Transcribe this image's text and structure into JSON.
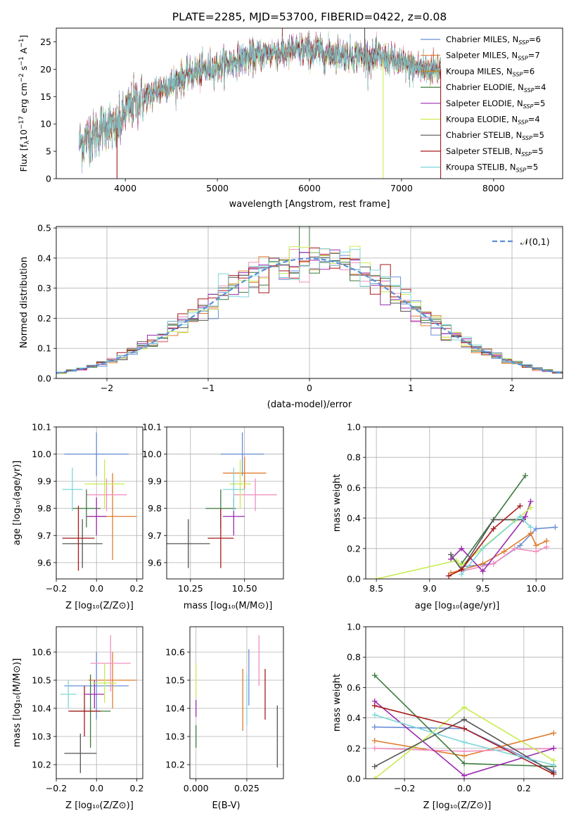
{
  "colors": {
    "chabrier_miles": "#6b8fd6",
    "salpeter_miles": "#e07b2c",
    "kroupa_miles": "#f28fc0",
    "chabrier_elodie": "#3d7a3d",
    "salpeter_elodie": "#9a2bb0",
    "kroupa_elodie": "#c8ec52",
    "chabrier_stelib": "#555555",
    "salpeter_stelib": "#a81a1a",
    "kroupa_stelib": "#7ed6d8",
    "normal": "#5b8fd6",
    "grid": "#b0b0b0"
  },
  "chart_data": [
    {
      "id": "spectrum",
      "type": "line",
      "title": "PLATE=2285, MJD=53700, FIBERID=0422, z=0.08",
      "xlabel": "wavelength [Angstrom, rest frame]",
      "ylabel": "Flux [f_λ10^-17 erg cm^-2 s^-1 A^-1]",
      "xlim": [
        3250,
        8750
      ],
      "ylim": [
        0,
        27.5
      ],
      "xticks": [
        4000,
        5000,
        6000,
        7000,
        8000
      ],
      "yticks": [
        0,
        5,
        10,
        15,
        20,
        25
      ],
      "grid": false,
      "legend_position": "top-right",
      "legend": [
        {
          "key": "chabrier_miles",
          "label": "Chabrier MILES, N",
          "sub": "SSP",
          "tail": "=6"
        },
        {
          "key": "salpeter_miles",
          "label": "Salpeter MILES, N",
          "sub": "SSP",
          "tail": "=7"
        },
        {
          "key": "kroupa_miles",
          "label": "Kroupa MILES, N",
          "sub": "SSP",
          "tail": "=6",
          "color_override": "#c88a20"
        },
        {
          "key": "chabrier_elodie",
          "label": "Chabrier ELODIE, N",
          "sub": "SSP",
          "tail": "=4"
        },
        {
          "key": "salpeter_elodie",
          "label": "Salpeter ELODIE, N",
          "sub": "SSP",
          "tail": "=5"
        },
        {
          "key": "kroupa_elodie",
          "label": "Kroupa ELODIE, N",
          "sub": "SSP",
          "tail": "=4"
        },
        {
          "key": "chabrier_stelib",
          "label": "Chabrier STELIB, N",
          "sub": "SSP",
          "tail": "=5"
        },
        {
          "key": "salpeter_stelib",
          "label": "Salpeter STELIB, N",
          "sub": "SSP",
          "tail": "=5"
        },
        {
          "key": "kroupa_stelib",
          "label": "Kroupa STELIB, N",
          "sub": "SSP",
          "tail": "=5"
        }
      ],
      "continuum": {
        "x": [
          3500,
          3700,
          3800,
          3900,
          4000,
          4100,
          4300,
          4500,
          4700,
          5000,
          5300,
          5600,
          5900,
          6200,
          6500,
          6800,
          7100,
          7300,
          7400
        ],
        "y": [
          6.5,
          8.5,
          10,
          9,
          12,
          14,
          15.5,
          17.5,
          19,
          20.5,
          22,
          23,
          23.5,
          23,
          22.5,
          22,
          20.5,
          20,
          20
        ]
      },
      "spikes": [
        {
          "x": 3910,
          "y": 0
        },
        {
          "x": 6800,
          "y": 0
        },
        {
          "x": 7425,
          "y": 0
        },
        {
          "x": 6600,
          "y": 27.5
        }
      ]
    },
    {
      "id": "residuals",
      "type": "histogram",
      "xlabel": "(data-model)/error",
      "ylabel": "Normed distribution",
      "xlim": [
        -2.5,
        2.5
      ],
      "ylim": [
        0,
        0.505
      ],
      "xticks": [
        -2,
        -1,
        0,
        1,
        2
      ],
      "yticks": [
        0.0,
        0.1,
        0.2,
        0.3,
        0.4,
        0.5
      ],
      "grid": true,
      "legend_position": "top-right",
      "normal_label": "𝒩(0,1)",
      "bin_width": 0.1
    },
    {
      "id": "age_vs_Z",
      "type": "errorbar",
      "xlabel": "Z [log₁₀(Z/Z⊙)]",
      "ylabel": "age  [log₁₀(age/yr)]",
      "xlim": [
        -0.2,
        0.23
      ],
      "ylim": [
        9.54,
        10.1
      ],
      "xticks": [
        -0.2,
        0.0,
        0.2
      ],
      "yticks": [
        9.6,
        9.7,
        9.8,
        9.9,
        10.0,
        10.1
      ],
      "grid": true,
      "points": [
        {
          "key": "chabrier_miles",
          "x": 0.0,
          "xerr": 0.16,
          "y": 10.0,
          "yerr": 0.08
        },
        {
          "key": "salpeter_miles",
          "x": 0.08,
          "xerr": 0.12,
          "y": 9.77,
          "yerr": 0.16
        },
        {
          "key": "kroupa_miles",
          "x": 0.05,
          "xerr": 0.1,
          "y": 9.85,
          "yerr": 0.06
        },
        {
          "key": "chabrier_elodie",
          "x": -0.05,
          "xerr": 0.07,
          "y": 9.8,
          "yerr": 0.07
        },
        {
          "key": "salpeter_elodie",
          "x": 0.0,
          "xerr": 0.05,
          "y": 9.77,
          "yerr": 0.07
        },
        {
          "key": "kroupa_elodie",
          "x": 0.04,
          "xerr": 0.1,
          "y": 9.89,
          "yerr": 0.09
        },
        {
          "key": "chabrier_stelib",
          "x": -0.07,
          "xerr": 0.1,
          "y": 9.67,
          "yerr": 0.09
        },
        {
          "key": "salpeter_stelib",
          "x": -0.09,
          "xerr": 0.08,
          "y": 9.69,
          "yerr": 0.12
        },
        {
          "key": "kroupa_stelib",
          "x": -0.12,
          "xerr": 0.05,
          "y": 9.87,
          "yerr": 0.08
        }
      ]
    },
    {
      "id": "age_vs_mass",
      "type": "errorbar",
      "xlabel": "mass [log₁₀(M/M⊙)]",
      "ylabel": "",
      "xlim": [
        10.14,
        10.68
      ],
      "ylim": [
        9.54,
        10.1
      ],
      "xticks": [
        10.25,
        10.5
      ],
      "xtick_labels": [
        "10.25",
        "10.50"
      ],
      "yticks": [
        9.6,
        9.7,
        9.8,
        9.9,
        10.0,
        10.1
      ],
      "grid": true,
      "points": [
        {
          "key": "chabrier_miles",
          "x": 10.49,
          "xerr": 0.1,
          "y": 10.0,
          "yerr": 0.08
        },
        {
          "key": "salpeter_miles",
          "x": 10.5,
          "xerr": 0.1,
          "y": 9.93,
          "yerr": 0.06
        },
        {
          "key": "kroupa_miles",
          "x": 10.55,
          "xerr": 0.1,
          "y": 9.85,
          "yerr": 0.06
        },
        {
          "key": "chabrier_elodie",
          "x": 10.39,
          "xerr": 0.07,
          "y": 9.8,
          "yerr": 0.07
        },
        {
          "key": "salpeter_elodie",
          "x": 10.45,
          "xerr": 0.05,
          "y": 9.77,
          "yerr": 0.07
        },
        {
          "key": "kroupa_elodie",
          "x": 10.48,
          "xerr": 0.05,
          "y": 9.89,
          "yerr": 0.09
        },
        {
          "key": "chabrier_stelib",
          "x": 10.24,
          "xerr": 0.1,
          "y": 9.67,
          "yerr": 0.09
        },
        {
          "key": "salpeter_stelib",
          "x": 10.39,
          "xerr": 0.06,
          "y": 9.69,
          "yerr": 0.11
        },
        {
          "key": "kroupa_stelib",
          "x": 10.45,
          "xerr": 0.05,
          "y": 9.87,
          "yerr": 0.08
        }
      ]
    },
    {
      "id": "massweight_vs_age",
      "type": "line",
      "xlabel": "age  [log₁₀(age/yr)]",
      "ylabel": "mass weight",
      "xlim": [
        8.4,
        10.25
      ],
      "ylim": [
        0,
        1.0
      ],
      "xticks": [
        8.5,
        9.0,
        9.5,
        10.0
      ],
      "yticks": [
        0.0,
        0.2,
        0.4,
        0.6,
        0.8,
        1.0
      ],
      "grid": true,
      "series": [
        {
          "key": "chabrier_miles",
          "x": [
            9.3,
            9.6,
            9.85,
            10.0,
            10.18
          ],
          "y": [
            0.08,
            0.1,
            0.22,
            0.33,
            0.34
          ]
        },
        {
          "key": "salpeter_miles",
          "x": [
            9.2,
            9.5,
            9.7,
            9.95,
            10.0,
            10.1
          ],
          "y": [
            0.04,
            0.1,
            0.18,
            0.3,
            0.22,
            0.25
          ]
        },
        {
          "key": "kroupa_miles",
          "x": [
            9.3,
            9.6,
            9.8,
            10.0,
            10.1
          ],
          "y": [
            0.05,
            0.1,
            0.2,
            0.18,
            0.21
          ]
        },
        {
          "key": "chabrier_elodie",
          "x": [
            9.3,
            9.9
          ],
          "y": [
            0.1,
            0.68
          ]
        },
        {
          "key": "salpeter_elodie",
          "x": [
            9.2,
            9.3,
            9.5,
            9.9,
            9.95
          ],
          "y": [
            0.13,
            0.2,
            0.05,
            0.41,
            0.51
          ]
        },
        {
          "key": "kroupa_elodie",
          "x": [
            8.5,
            9.25,
            9.3,
            9.8,
            9.95
          ],
          "y": [
            0.0,
            0.12,
            0.09,
            0.38,
            0.47
          ]
        },
        {
          "key": "chabrier_stelib",
          "x": [
            9.2,
            9.3,
            9.6,
            9.88
          ],
          "y": [
            0.16,
            0.06,
            0.39,
            0.39
          ]
        },
        {
          "key": "salpeter_stelib",
          "x": [
            9.18,
            9.3,
            9.6,
            9.85
          ],
          "y": [
            0.02,
            0.06,
            0.33,
            0.48
          ]
        },
        {
          "key": "kroupa_stelib",
          "x": [
            9.3,
            9.5,
            9.85,
            9.95
          ],
          "y": [
            0.03,
            0.2,
            0.41,
            0.34
          ]
        }
      ]
    },
    {
      "id": "mass_vs_Z",
      "type": "errorbar",
      "xlabel": "Z [log₁₀(Z/Z⊙)]",
      "ylabel": "mass [log₁₀(M/M⊙)]",
      "xlim": [
        -0.2,
        0.23
      ],
      "ylim": [
        10.15,
        10.69
      ],
      "xticks": [
        -0.2,
        0.0,
        0.2
      ],
      "yticks": [
        10.2,
        10.3,
        10.4,
        10.5,
        10.6
      ],
      "grid": true,
      "points": [
        {
          "key": "chabrier_miles",
          "x": 0.0,
          "xerr": 0.16,
          "y": 10.48,
          "yerr": 0.12
        },
        {
          "key": "salpeter_miles",
          "x": 0.08,
          "xerr": 0.12,
          "y": 10.5,
          "yerr": 0.1
        },
        {
          "key": "kroupa_miles",
          "x": 0.07,
          "xerr": 0.1,
          "y": 10.56,
          "yerr": 0.1
        },
        {
          "key": "chabrier_elodie",
          "x": -0.03,
          "xerr": 0.1,
          "y": 10.39,
          "yerr": 0.13
        },
        {
          "key": "salpeter_elodie",
          "x": -0.01,
          "xerr": 0.05,
          "y": 10.45,
          "yerr": 0.05
        },
        {
          "key": "kroupa_elodie",
          "x": 0.04,
          "xerr": 0.06,
          "y": 10.49,
          "yerr": 0.07
        },
        {
          "key": "chabrier_stelib",
          "x": -0.08,
          "xerr": 0.08,
          "y": 10.24,
          "yerr": 0.07
        },
        {
          "key": "salpeter_stelib",
          "x": -0.06,
          "xerr": 0.08,
          "y": 10.39,
          "yerr": 0.09
        },
        {
          "key": "kroupa_stelib",
          "x": -0.14,
          "xerr": 0.04,
          "y": 10.45,
          "yerr": 0.05
        }
      ]
    },
    {
      "id": "mass_vs_EBV",
      "type": "errorbar",
      "xlabel": "E(B-V)",
      "ylabel": "",
      "xlim": [
        -0.003,
        0.043
      ],
      "ylim": [
        10.15,
        10.69
      ],
      "xticks": [
        0.0,
        0.025
      ],
      "xtick_labels": [
        "0.000",
        "0.025"
      ],
      "yticks": [
        10.2,
        10.3,
        10.4,
        10.5,
        10.6
      ],
      "grid": true,
      "points": [
        {
          "key": "chabrier_miles",
          "x": 0.026,
          "xerr": 0,
          "y": 10.51,
          "yerr": 0.1
        },
        {
          "key": "salpeter_miles",
          "x": 0.023,
          "xerr": 0,
          "y": 10.43,
          "yerr": 0.11
        },
        {
          "key": "kroupa_miles",
          "x": 0.031,
          "xerr": 0,
          "y": 10.57,
          "yerr": 0.09
        },
        {
          "key": "chabrier_elodie",
          "x": 0.0,
          "xerr": 0,
          "y": 10.3,
          "yerr": 0.04
        },
        {
          "key": "salpeter_elodie",
          "x": 0.0,
          "xerr": 0,
          "y": 10.4,
          "yerr": 0.03
        },
        {
          "key": "kroupa_elodie",
          "x": 0.0,
          "xerr": 0,
          "y": 10.5,
          "yerr": 0.06
        },
        {
          "key": "chabrier_stelib",
          "x": 0.04,
          "xerr": 0,
          "y": 10.3,
          "yerr": 0.11
        },
        {
          "key": "salpeter_stelib",
          "x": 0.034,
          "xerr": 0,
          "y": 10.45,
          "yerr": 0.09
        },
        {
          "key": "kroupa_stelib",
          "x": 0.025,
          "xerr": 0,
          "y": 10.43,
          "yerr": 0.09
        }
      ]
    },
    {
      "id": "massweight_vs_Z",
      "type": "line",
      "xlabel": "Z [log₁₀(Z/Z⊙)]",
      "ylabel": "mass weight",
      "xlim": [
        -0.33,
        0.33
      ],
      "ylim": [
        0,
        1.0
      ],
      "xticks": [
        -0.2,
        0.0,
        0.2
      ],
      "yticks": [
        0.0,
        0.2,
        0.4,
        0.6,
        0.8,
        1.0
      ],
      "grid": true,
      "series": [
        {
          "key": "chabrier_miles",
          "x": [
            -0.3,
            0.0,
            0.3
          ],
          "y": [
            0.34,
            0.33,
            0.05
          ]
        },
        {
          "key": "salpeter_miles",
          "x": [
            -0.3,
            0.0,
            0.3
          ],
          "y": [
            0.25,
            0.15,
            0.3
          ]
        },
        {
          "key": "kroupa_miles",
          "x": [
            -0.3,
            0.0,
            0.3
          ],
          "y": [
            0.2,
            0.18,
            0.2
          ]
        },
        {
          "key": "chabrier_elodie",
          "x": [
            -0.3,
            0.0,
            0.3
          ],
          "y": [
            0.68,
            0.1,
            0.08
          ]
        },
        {
          "key": "salpeter_elodie",
          "x": [
            -0.3,
            0.0,
            0.3
          ],
          "y": [
            0.51,
            0.02,
            0.2
          ]
        },
        {
          "key": "kroupa_elodie",
          "x": [
            -0.3,
            0.0,
            0.3
          ],
          "y": [
            0.0,
            0.47,
            0.12
          ]
        },
        {
          "key": "chabrier_stelib",
          "x": [
            -0.3,
            0.0,
            0.3
          ],
          "y": [
            0.08,
            0.39,
            0.04
          ]
        },
        {
          "key": "salpeter_stelib",
          "x": [
            -0.3,
            0.0,
            0.3
          ],
          "y": [
            0.48,
            0.33,
            0.03
          ]
        },
        {
          "key": "kroupa_stelib",
          "x": [
            -0.3,
            0.0,
            0.3
          ],
          "y": [
            0.42,
            0.24,
            0.09
          ]
        }
      ]
    }
  ]
}
